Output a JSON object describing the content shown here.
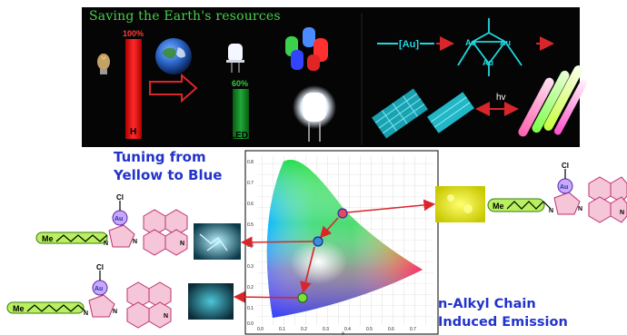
{
  "banner": {
    "title": "Saving the Earth's resources",
    "bulb_percent": "100%",
    "bulb_bar_letter": "H",
    "led_percent": "60%",
    "led_label": "LED",
    "au_label": "[Au]",
    "au_cluster_label": "Au",
    "hv_label": "hv"
  },
  "left_title": [
    "Tuning from",
    "Yellow to Blue"
  ],
  "right_title": [
    "n-Alkyl Chain",
    "Induced Emission"
  ],
  "molecule": {
    "cl": "Cl",
    "au": "Au",
    "n": "N",
    "me": "Me"
  },
  "cie": {
    "y_ticks": [
      "0.8",
      "0.7",
      "0.6",
      "0.5",
      "0.4",
      "0.3",
      "0.2",
      "0.1",
      "0.0"
    ],
    "x_ticks": [
      "0.0",
      "0.1",
      "0.2",
      "0.3",
      "0.4",
      "0.5",
      "0.6",
      "0.7"
    ],
    "x_axis_label": "x"
  },
  "colors": {
    "banner_bg": "#050505",
    "title_green": "#46d04a",
    "accent_blue": "#2233cc",
    "arrow_red": "#d9262a",
    "cyan": "#20d8e0",
    "ring_pink": "#f4c6d8",
    "chain_green": "#b8f060"
  },
  "icons": [
    "light-bulb-icon",
    "earth-icon",
    "led-icon",
    "rgb-led-icon",
    "white-led-icon",
    "crystal-icon",
    "glowing-rods-icon"
  ]
}
